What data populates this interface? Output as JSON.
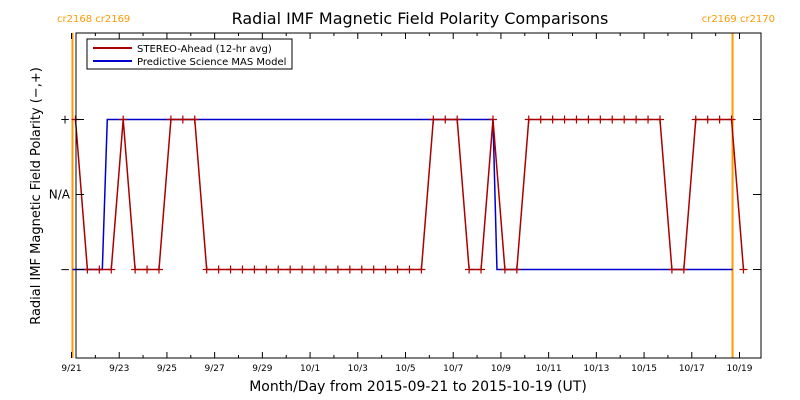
{
  "chart_data": {
    "type": "line",
    "title": "Radial IMF Magnetic Field Polarity Comparisons",
    "xlabel": "Month/Day from 2015-09-21 to 2015-10-19 (UT)",
    "ylabel": "Radial IMF Magnetic Field Polarity (−,+)",
    "x_start": "2015-09-21",
    "x_end": "2015-10-19",
    "x_tick_labels": [
      "9/21",
      "9/23",
      "9/25",
      "9/27",
      "9/29",
      "10/1",
      "10/3",
      "10/5",
      "10/7",
      "10/9",
      "10/11",
      "10/13",
      "10/15",
      "10/17",
      "10/19"
    ],
    "y_categories": [
      "−",
      "N/A",
      "+"
    ],
    "grid": false,
    "legend_position": "top-left",
    "carrington_markers": [
      {
        "date": "2015-09-21T01:00",
        "label": "cr2168 cr2169",
        "color": "#ff9900"
      },
      {
        "date": "2015-10-18T17:00",
        "label": "cr2169 cr2170",
        "color": "#ff9900"
      }
    ],
    "series": [
      {
        "name": "STEREO-Ahead (12-hr avg)",
        "color": "#aa0000",
        "marker": "+",
        "points": [
          [
            "2015-09-21T04:00",
            "+"
          ],
          [
            "2015-09-21T16:00",
            "−"
          ],
          [
            "2015-09-22T04:00",
            "−"
          ],
          [
            "2015-09-22T16:00",
            "−"
          ],
          [
            "2015-09-23T04:00",
            "+"
          ],
          [
            "2015-09-23T16:00",
            "−"
          ],
          [
            "2015-09-24T04:00",
            "−"
          ],
          [
            "2015-09-24T16:00",
            "−"
          ],
          [
            "2015-09-25T04:00",
            "+"
          ],
          [
            "2015-09-25T16:00",
            "+"
          ],
          [
            "2015-09-26T04:00",
            "+"
          ],
          [
            "2015-09-26T16:00",
            "−"
          ],
          [
            "2015-09-27T04:00",
            "−"
          ],
          [
            "2015-09-27T16:00",
            "−"
          ],
          [
            "2015-09-28T04:00",
            "−"
          ],
          [
            "2015-09-28T16:00",
            "−"
          ],
          [
            "2015-09-29T04:00",
            "−"
          ],
          [
            "2015-09-29T16:00",
            "−"
          ],
          [
            "2015-09-30T04:00",
            "−"
          ],
          [
            "2015-09-30T16:00",
            "−"
          ],
          [
            "2015-10-01T04:00",
            "−"
          ],
          [
            "2015-10-01T16:00",
            "−"
          ],
          [
            "2015-10-02T04:00",
            "−"
          ],
          [
            "2015-10-02T16:00",
            "−"
          ],
          [
            "2015-10-03T04:00",
            "−"
          ],
          [
            "2015-10-03T16:00",
            "−"
          ],
          [
            "2015-10-04T04:00",
            "−"
          ],
          [
            "2015-10-04T16:00",
            "−"
          ],
          [
            "2015-10-05T04:00",
            "−"
          ],
          [
            "2015-10-05T16:00",
            "−"
          ],
          [
            "2015-10-06T04:00",
            "+"
          ],
          [
            "2015-10-06T16:00",
            "+"
          ],
          [
            "2015-10-07T04:00",
            "+"
          ],
          [
            "2015-10-07T16:00",
            "−"
          ],
          [
            "2015-10-08T04:00",
            "−"
          ],
          [
            "2015-10-08T16:00",
            "+"
          ],
          [
            "2015-10-09T04:00",
            "−"
          ],
          [
            "2015-10-09T16:00",
            "−"
          ],
          [
            "2015-10-10T04:00",
            "+"
          ],
          [
            "2015-10-10T16:00",
            "+"
          ],
          [
            "2015-10-11T04:00",
            "+"
          ],
          [
            "2015-10-11T16:00",
            "+"
          ],
          [
            "2015-10-12T04:00",
            "+"
          ],
          [
            "2015-10-12T16:00",
            "+"
          ],
          [
            "2015-10-13T04:00",
            "+"
          ],
          [
            "2015-10-13T16:00",
            "+"
          ],
          [
            "2015-10-14T04:00",
            "+"
          ],
          [
            "2015-10-14T16:00",
            "+"
          ],
          [
            "2015-10-15T04:00",
            "+"
          ],
          [
            "2015-10-15T16:00",
            "+"
          ],
          [
            "2015-10-16T04:00",
            "−"
          ],
          [
            "2015-10-16T16:00",
            "−"
          ],
          [
            "2015-10-17T04:00",
            "+"
          ],
          [
            "2015-10-17T16:00",
            "+"
          ],
          [
            "2015-10-18T04:00",
            "+"
          ],
          [
            "2015-10-18T16:00",
            "+"
          ],
          [
            "2015-10-19T04:00",
            "−"
          ]
        ]
      },
      {
        "name": "Predictive Science MAS Model",
        "color": "#0000cc",
        "marker": "none",
        "points": [
          [
            "2015-09-21T01:00",
            "−"
          ],
          [
            "2015-09-22T07:00",
            "−"
          ],
          [
            "2015-09-22T12:00",
            "+"
          ],
          [
            "2015-10-08T16:00",
            "+"
          ],
          [
            "2015-10-08T20:00",
            "−"
          ],
          [
            "2015-10-18T17:00",
            "−"
          ]
        ]
      }
    ]
  }
}
